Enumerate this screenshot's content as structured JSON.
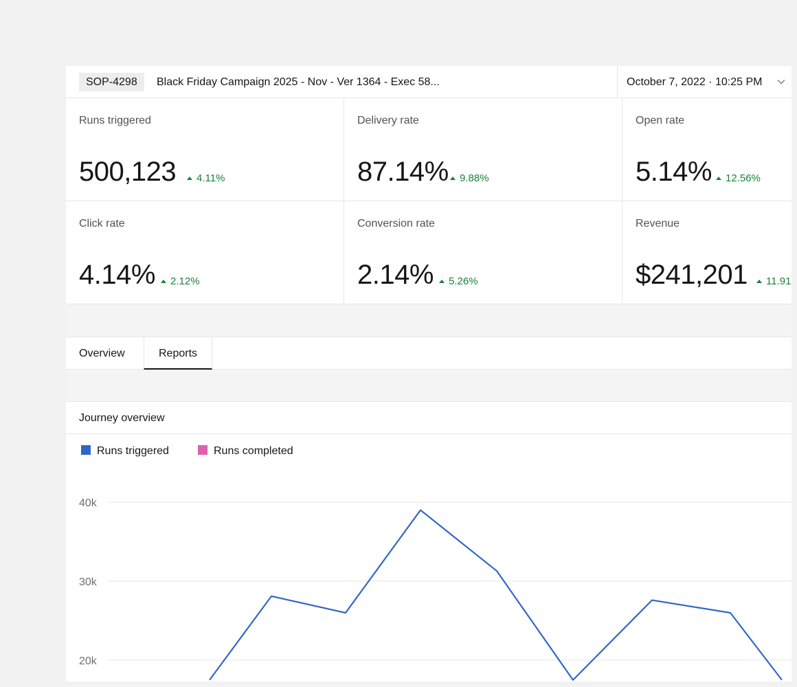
{
  "header": {
    "id_badge": "SOP-4298",
    "campaign_title": "Black Friday Campaign 2025 - Nov - Ver 1364 - Exec 58...",
    "date_selected": "October 7, 2022 · 10:25 PM",
    "chevron_icon": "chevron-down-icon"
  },
  "metrics": [
    {
      "label": "Runs triggered",
      "value": "500,123",
      "delta": "4.11%"
    },
    {
      "label": "Delivery rate",
      "value": "87.14%",
      "delta": "9.88%"
    },
    {
      "label": "Open rate",
      "value": "5.14%",
      "delta": "12.56%"
    },
    {
      "label": "Click rate",
      "value": "4.14%",
      "delta": "2.12%"
    },
    {
      "label": "Conversion rate",
      "value": "2.14%",
      "delta": "5.26%"
    },
    {
      "label": "Revenue",
      "value": "$241,201",
      "delta": "11.91"
    }
  ],
  "colors": {
    "positive": "#198038",
    "series_triggered": "#3066c8",
    "series_completed": "#e05fae"
  },
  "tabs": [
    {
      "label": "Overview",
      "selected": false
    },
    {
      "label": "Reports",
      "selected": true
    }
  ],
  "chart_section": {
    "title": "Journey overview"
  },
  "chart_data": {
    "type": "line",
    "title": "",
    "legend_position": "top-left",
    "grid": true,
    "y_ticks": [
      {
        "value": 40000,
        "label": "40k"
      },
      {
        "value": 30000,
        "label": "30k"
      },
      {
        "value": 20000,
        "label": "20k"
      }
    ],
    "ylim": [
      0,
      40000
    ],
    "series": [
      {
        "name": "Runs triggered",
        "color": "#3066c8",
        "values": [
          null,
          null,
          17500,
          28100,
          26000,
          39000,
          31300,
          17500,
          27600,
          26000,
          17500
        ]
      },
      {
        "name": "Runs completed",
        "color": "#e05fae",
        "values": []
      }
    ]
  }
}
